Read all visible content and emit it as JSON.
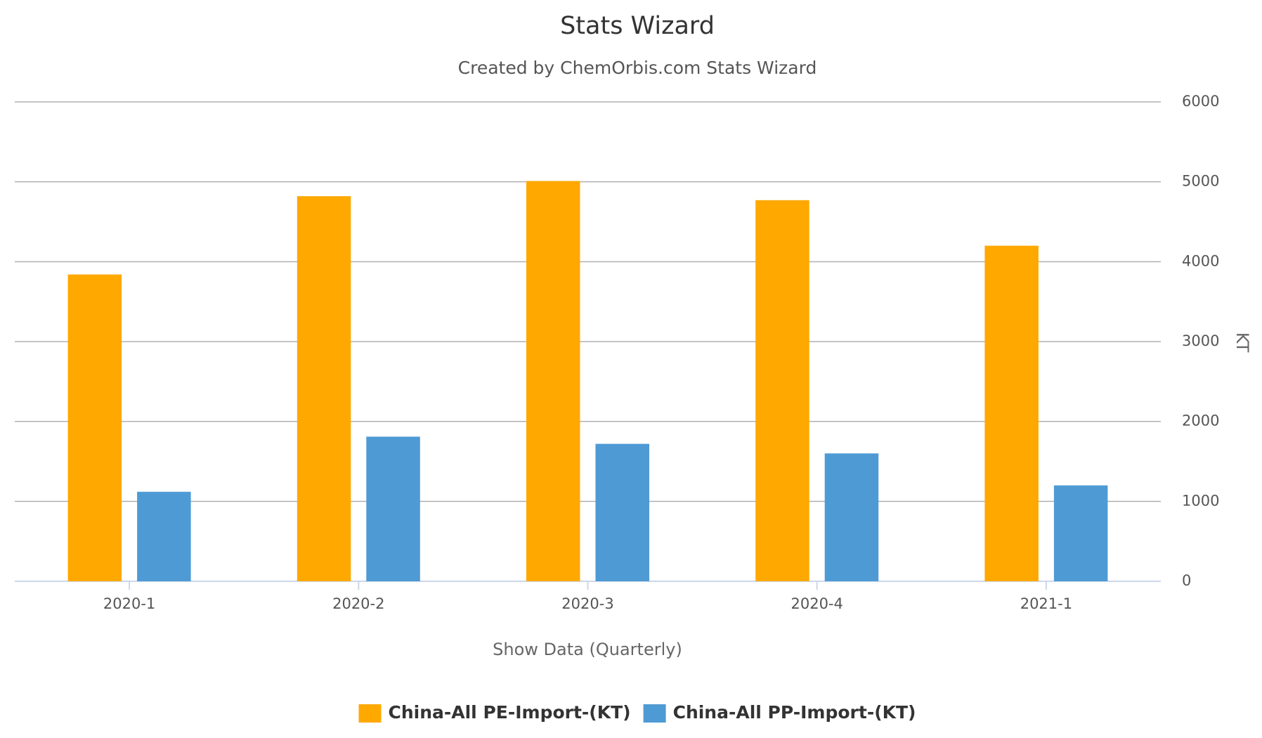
{
  "chart_data": {
    "type": "bar",
    "title": "Stats Wizard",
    "subtitle": "Created by ChemOrbis.com Stats Wizard",
    "x_label": "Show Data (Quarterly)",
    "y_label": "KT",
    "categories": [
      "2020-1",
      "2020-2",
      "2020-3",
      "2020-4",
      "2021-1"
    ],
    "series": [
      {
        "name": "China-All PE-Import-(KT)",
        "color": "#ffa800",
        "values": [
          3840,
          4820,
          5010,
          4770,
          4200
        ]
      },
      {
        "name": "China-All PP-Import-(KT)",
        "color": "#4e9ad4",
        "values": [
          1120,
          1810,
          1720,
          1600,
          1200
        ]
      }
    ],
    "ylim": [
      0,
      6000
    ],
    "yticks": [
      0,
      1000,
      2000,
      3000,
      4000,
      5000,
      6000
    ],
    "grid": true,
    "y_axis_side": "right",
    "legend": "bottom"
  }
}
